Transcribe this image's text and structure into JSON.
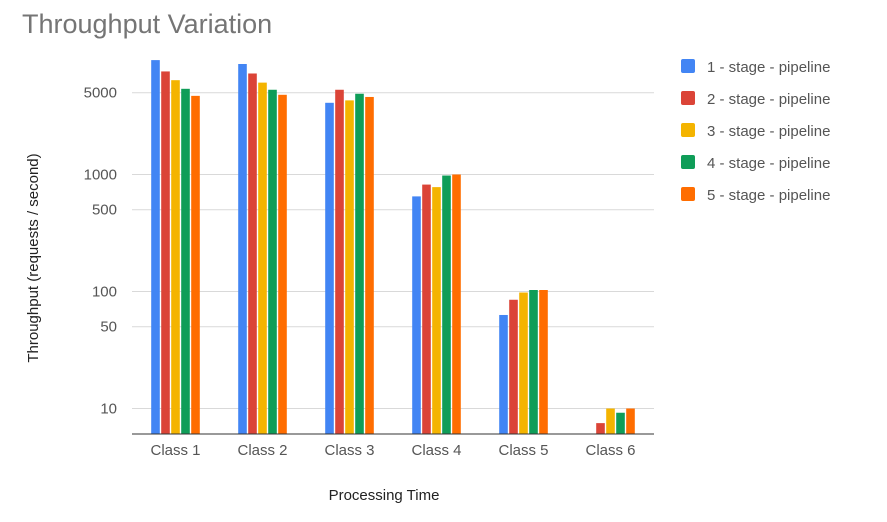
{
  "chart_data": {
    "type": "bar",
    "title": "Throughput Variation",
    "xlabel": "Processing Time",
    "ylabel": "Throughput (requests / second)",
    "yscale": "log",
    "ylim": [
      5,
      10000
    ],
    "yticks": [
      10,
      50,
      100,
      500,
      1000,
      5000
    ],
    "grid": true,
    "legend_position": "right",
    "categories": [
      "Class 1",
      "Class 2",
      "Class 3",
      "Class 4",
      "Class 5",
      "Class 6"
    ],
    "series": [
      {
        "name": "1 - stage - pipeline",
        "color": "#4285F4",
        "values": [
          9500,
          8800,
          4100,
          650,
          63,
          null
        ]
      },
      {
        "name": "2 - stage - pipeline",
        "color": "#DB4437",
        "values": [
          7600,
          7300,
          5300,
          820,
          85,
          7.5
        ]
      },
      {
        "name": "3 - stage - pipeline",
        "color": "#F4B400",
        "values": [
          6400,
          6100,
          4300,
          780,
          98,
          10
        ]
      },
      {
        "name": "4 - stage - pipeline",
        "color": "#0F9D58",
        "values": [
          5400,
          5300,
          4900,
          980,
          103,
          9.2
        ]
      },
      {
        "name": "5 - stage - pipeline",
        "color": "#FF6D00",
        "values": [
          4700,
          4800,
          4600,
          1000,
          103,
          10
        ]
      }
    ]
  }
}
